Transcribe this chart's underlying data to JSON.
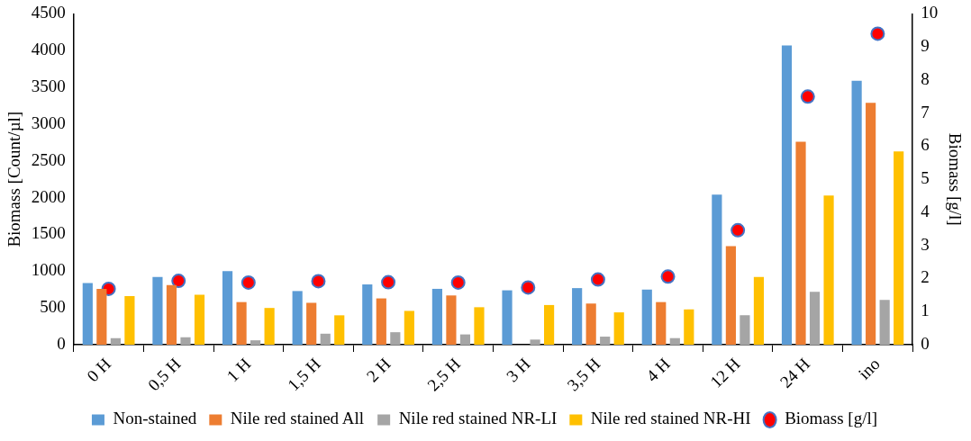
{
  "chart_data": {
    "type": "bar",
    "ylabel": "Biomass [Count/µl]",
    "y2label": "Biomass [g/l]",
    "categories": [
      "0 H",
      "0,5 H",
      "1 H",
      "1,5 H",
      "2 H",
      "2,5 H",
      "3 H",
      "3,5 H",
      "4 H",
      "12 H",
      "24 H",
      "ino"
    ],
    "series": [
      {
        "name": "Non-stained",
        "color": "#5b9bd5",
        "values": [
          840,
          920,
          1000,
          730,
          820,
          760,
          740,
          770,
          750,
          2040,
          4070,
          3590
        ]
      },
      {
        "name": "Nile red stained All",
        "color": "#ed7d31",
        "values": [
          760,
          810,
          580,
          570,
          630,
          670,
          null,
          560,
          580,
          1340,
          2760,
          3290
        ]
      },
      {
        "name": "Nile red stained NR-LI",
        "color": "#a5a5a5",
        "values": [
          90,
          100,
          60,
          150,
          170,
          140,
          70,
          110,
          90,
          400,
          720,
          610
        ]
      },
      {
        "name": "Nile red stained NR-HI",
        "color": "#ffc000",
        "values": [
          660,
          680,
          500,
          400,
          460,
          510,
          540,
          440,
          480,
          920,
          2030,
          2630
        ]
      },
      {
        "name": "Biomass [g/l]",
        "type": "scatter",
        "axis": "y2",
        "color": "#ff0000",
        "values": [
          1.69,
          1.93,
          1.88,
          1.92,
          1.89,
          1.88,
          1.73,
          1.97,
          2.06,
          3.46,
          7.5,
          9.4
        ]
      }
    ],
    "ylim": [
      0,
      4500
    ],
    "yticks": [
      0,
      500,
      1000,
      1500,
      2000,
      2500,
      3000,
      3500,
      4000,
      4500
    ],
    "y2lim": [
      0,
      10
    ],
    "y2ticks": [
      0,
      1,
      2,
      3,
      4,
      5,
      6,
      7,
      8,
      9,
      10
    ],
    "grid": false,
    "legend": "bottom",
    "marker": "circle"
  }
}
